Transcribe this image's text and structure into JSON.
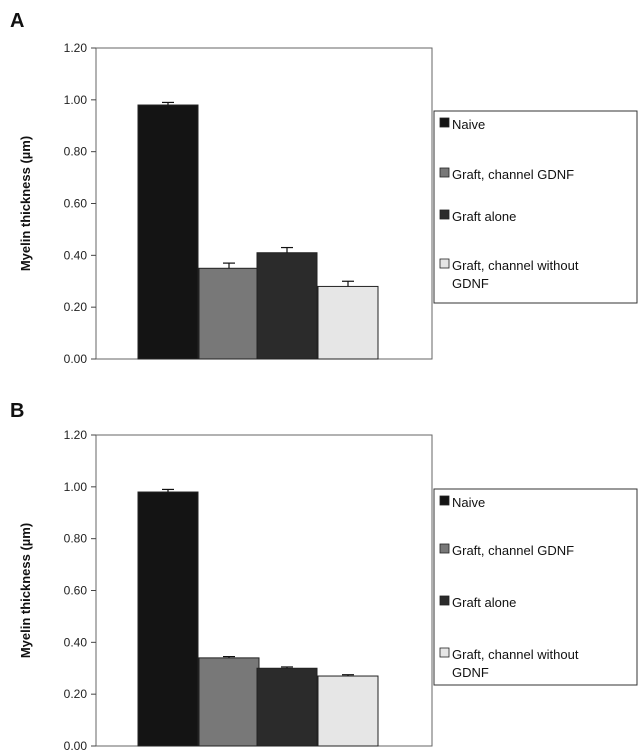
{
  "colors": {
    "Naive": "#141414",
    "Graft, channel GDNF": "#787878",
    "Graft alone": "#2b2b2b",
    "Graft, channel without GDNF": "#e6e6e6"
  },
  "chart_data": [
    {
      "type": "bar",
      "panel_label": "A",
      "title": "",
      "xlabel": "",
      "ylabel": "Myelin thickness (µm)",
      "ylim": [
        0,
        1.2
      ],
      "yticks": [
        "0.00",
        "0.20",
        "0.40",
        "0.60",
        "0.80",
        "1.00",
        "1.20"
      ],
      "grid": false,
      "legend_position": "right",
      "categories": [
        ""
      ],
      "series": [
        {
          "name": "Naive",
          "values": [
            0.98
          ],
          "error": [
            0.01
          ]
        },
        {
          "name": "Graft, channel GDNF",
          "values": [
            0.35
          ],
          "error": [
            0.02
          ]
        },
        {
          "name": "Graft alone",
          "values": [
            0.41
          ],
          "error": [
            0.02
          ]
        },
        {
          "name": "Graft, channel without GDNF",
          "values": [
            0.28
          ],
          "error": [
            0.02
          ]
        }
      ]
    },
    {
      "type": "bar",
      "panel_label": "B",
      "title": "",
      "xlabel": "",
      "ylabel": "Myelin thickness (µm)",
      "ylim": [
        0,
        1.2
      ],
      "yticks": [
        "0.00",
        "0.20",
        "0.40",
        "0.60",
        "0.80",
        "1.00",
        "1.20"
      ],
      "grid": false,
      "legend_position": "right",
      "categories": [
        ""
      ],
      "series": [
        {
          "name": "Naive",
          "values": [
            0.98
          ],
          "error": [
            0.01
          ]
        },
        {
          "name": "Graft, channel GDNF",
          "values": [
            0.34
          ],
          "error": [
            0.005
          ]
        },
        {
          "name": "Graft alone",
          "values": [
            0.3
          ],
          "error": [
            0.005
          ]
        },
        {
          "name": "Graft, channel without GDNF",
          "values": [
            0.27
          ],
          "error": [
            0.005
          ]
        }
      ]
    }
  ]
}
